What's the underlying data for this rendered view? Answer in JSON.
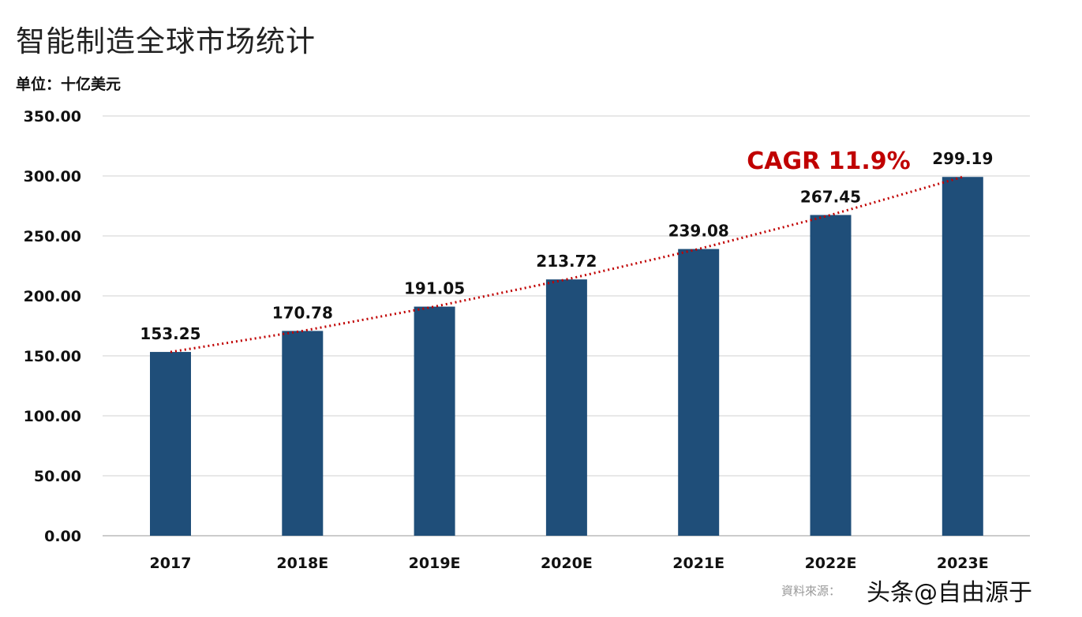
{
  "chart_data": {
    "type": "bar",
    "title": "智能制造全球市场统计",
    "subtitle": "单位：十亿美元",
    "categories": [
      "2017",
      "2018E",
      "2019E",
      "2020E",
      "2021E",
      "2022E",
      "2023E"
    ],
    "values": [
      153.25,
      170.78,
      191.05,
      213.72,
      239.08,
      267.45,
      299.19
    ],
    "data_labels": [
      "153.25",
      "170.78",
      "191.05",
      "213.72",
      "239.08",
      "267.45",
      "299.19"
    ],
    "ylim": [
      0,
      350
    ],
    "yticks": [
      "0.00",
      "50.00",
      "100.00",
      "150.00",
      "200.00",
      "250.00",
      "300.00",
      "350.00"
    ],
    "grid": true,
    "bar_color": "#1f4e79",
    "trendline": {
      "style": "dotted",
      "color": "#c00000",
      "from": "2017",
      "to": "2023E"
    },
    "annotation": {
      "text": "CAGR 11.9%",
      "color": "#c00000"
    },
    "source": "資料來源：",
    "xlabel": "",
    "ylabel": ""
  },
  "watermark": "头条@自由源于"
}
